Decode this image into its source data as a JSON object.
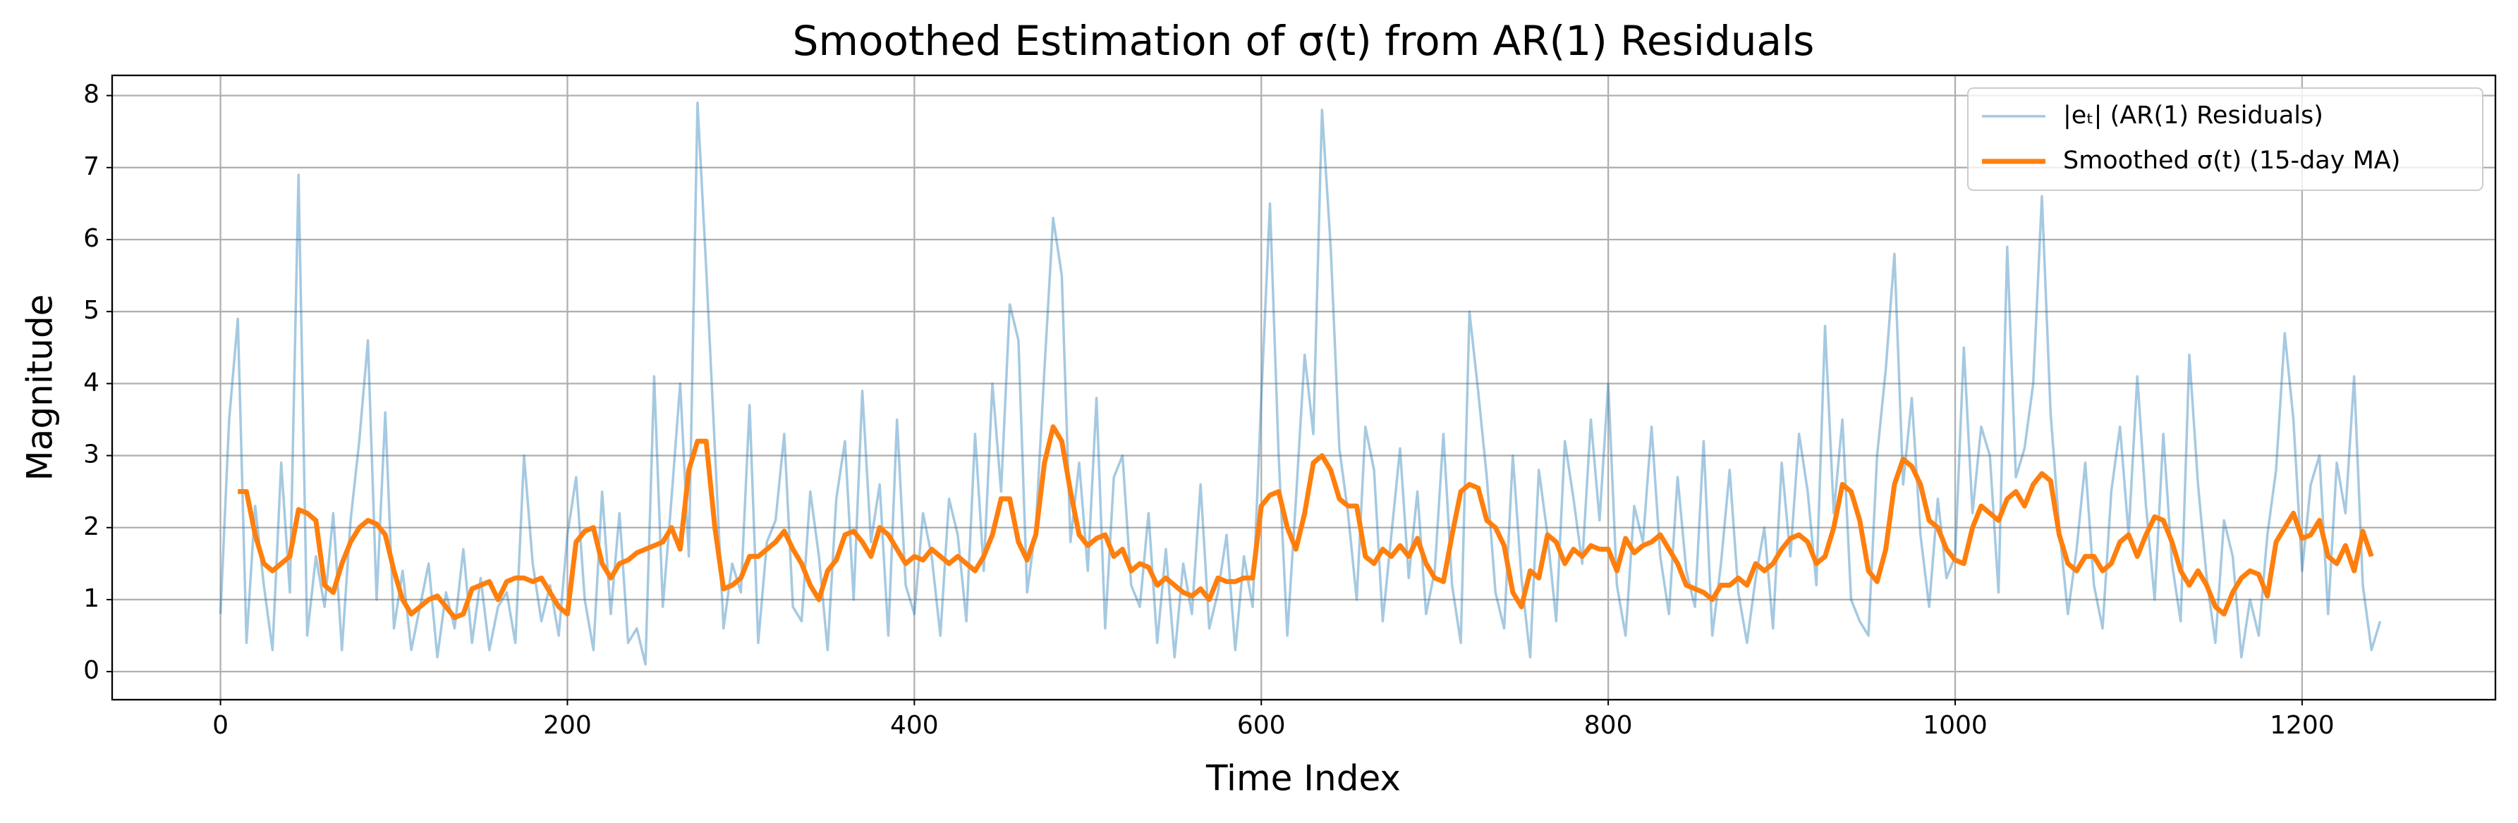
{
  "chart_data": {
    "type": "line",
    "title": "Smoothed Estimation of σ(t) from AR(1) Residuals",
    "x_label": "Time Index",
    "y_label": "Magnitude",
    "x": [
      0,
      5,
      10,
      15,
      20,
      25,
      30,
      35,
      40,
      45,
      50,
      55,
      60,
      65,
      70,
      75,
      80,
      85,
      90,
      95,
      100,
      105,
      110,
      115,
      120,
      125,
      130,
      135,
      140,
      145,
      150,
      155,
      160,
      165,
      170,
      175,
      180,
      185,
      190,
      195,
      200,
      205,
      210,
      215,
      220,
      225,
      230,
      235,
      240,
      245,
      250,
      255,
      260,
      265,
      270,
      275,
      280,
      285,
      290,
      295,
      300,
      305,
      310,
      315,
      320,
      325,
      330,
      335,
      340,
      345,
      350,
      355,
      360,
      365,
      370,
      375,
      380,
      385,
      390,
      395,
      400,
      405,
      410,
      415,
      420,
      425,
      430,
      435,
      440,
      445,
      450,
      455,
      460,
      465,
      470,
      475,
      480,
      485,
      490,
      495,
      500,
      505,
      510,
      515,
      520,
      525,
      530,
      535,
      540,
      545,
      550,
      555,
      560,
      565,
      570,
      575,
      580,
      585,
      590,
      595,
      600,
      605,
      610,
      615,
      620,
      625,
      630,
      635,
      640,
      645,
      650,
      655,
      660,
      665,
      670,
      675,
      680,
      685,
      690,
      695,
      700,
      705,
      710,
      715,
      720,
      725,
      730,
      735,
      740,
      745,
      750,
      755,
      760,
      765,
      770,
      775,
      780,
      785,
      790,
      795,
      800,
      805,
      810,
      815,
      820,
      825,
      830,
      835,
      840,
      845,
      850,
      855,
      860,
      865,
      870,
      875,
      880,
      885,
      890,
      895,
      900,
      905,
      910,
      915,
      920,
      925,
      930,
      935,
      940,
      945,
      950,
      955,
      960,
      965,
      970,
      975,
      980,
      985,
      990,
      995,
      1000,
      1005,
      1010,
      1015,
      1020,
      1025,
      1030,
      1035,
      1040,
      1045,
      1050,
      1055,
      1060,
      1065,
      1070,
      1075,
      1080,
      1085,
      1090,
      1095,
      1100,
      1105,
      1110,
      1115,
      1120,
      1125,
      1130,
      1135,
      1140,
      1145,
      1150,
      1155,
      1160,
      1165,
      1170,
      1175,
      1180,
      1185,
      1190,
      1195,
      1200,
      1205,
      1210,
      1215,
      1220,
      1225,
      1230,
      1235,
      1240,
      1245
    ],
    "series": [
      {
        "name": "|eₜ| (AR(1) Residuals)",
        "color": "#1f77b4",
        "alpha": 0.4,
        "values": [
          0.8,
          3.5,
          4.9,
          0.4,
          2.3,
          1.2,
          0.3,
          2.9,
          1.1,
          6.9,
          0.5,
          1.6,
          0.9,
          2.2,
          0.3,
          2.1,
          3.2,
          4.6,
          1.0,
          3.6,
          0.6,
          1.4,
          0.3,
          0.9,
          1.5,
          0.2,
          1.1,
          0.6,
          1.7,
          0.4,
          1.3,
          0.3,
          0.9,
          1.1,
          0.4,
          3.0,
          1.5,
          0.7,
          1.2,
          0.5,
          1.9,
          2.7,
          1.0,
          0.3,
          2.5,
          0.8,
          2.2,
          0.4,
          0.6,
          0.1,
          4.1,
          0.9,
          2.4,
          4.0,
          1.6,
          7.9,
          5.6,
          3.1,
          0.6,
          1.5,
          1.1,
          3.7,
          0.4,
          1.8,
          2.1,
          3.3,
          0.9,
          0.7,
          2.5,
          1.6,
          0.3,
          2.4,
          3.2,
          1.0,
          3.9,
          1.8,
          2.6,
          0.5,
          3.5,
          1.2,
          0.8,
          2.2,
          1.6,
          0.5,
          2.4,
          1.9,
          0.7,
          3.3,
          1.4,
          4.0,
          2.5,
          5.1,
          4.6,
          1.1,
          2.0,
          4.2,
          6.3,
          5.5,
          1.8,
          2.9,
          1.4,
          3.8,
          0.6,
          2.7,
          3.0,
          1.2,
          0.9,
          2.2,
          0.4,
          1.7,
          0.2,
          1.5,
          0.8,
          2.6,
          0.6,
          1.1,
          1.9,
          0.3,
          1.6,
          0.9,
          3.8,
          6.5,
          3.0,
          0.5,
          2.4,
          4.4,
          3.3,
          7.8,
          5.9,
          3.1,
          2.2,
          1.0,
          3.4,
          2.8,
          0.7,
          1.9,
          3.1,
          1.3,
          2.5,
          0.8,
          1.4,
          3.3,
          1.2,
          0.4,
          5.0,
          3.9,
          2.7,
          1.1,
          0.6,
          3.0,
          1.3,
          0.2,
          2.8,
          1.9,
          0.7,
          3.2,
          2.4,
          1.5,
          3.5,
          2.1,
          4.0,
          1.2,
          0.5,
          2.3,
          1.8,
          3.4,
          1.6,
          0.8,
          2.7,
          1.4,
          0.9,
          3.2,
          0.5,
          1.5,
          2.8,
          1.1,
          0.4,
          1.3,
          2.0,
          0.6,
          2.9,
          1.6,
          3.3,
          2.5,
          1.2,
          4.8,
          2.2,
          3.5,
          1.0,
          0.7,
          0.5,
          3.0,
          4.2,
          5.8,
          2.6,
          3.8,
          1.9,
          0.9,
          2.4,
          1.3,
          1.6,
          4.5,
          2.2,
          3.4,
          3.0,
          1.1,
          5.9,
          2.7,
          3.1,
          4.0,
          6.6,
          3.6,
          2.0,
          0.8,
          1.7,
          2.9,
          1.2,
          0.6,
          2.5,
          3.4,
          1.9,
          4.1,
          2.3,
          1.0,
          3.3,
          1.5,
          0.7,
          4.4,
          2.6,
          1.3,
          0.4,
          2.1,
          1.6,
          0.2,
          1.0,
          0.5,
          1.9,
          2.8,
          4.7,
          3.5,
          1.4,
          2.6,
          3.0,
          0.8,
          2.9,
          2.2,
          4.1,
          1.2,
          0.3,
          0.7
        ]
      },
      {
        "name": "Smoothed σ(t) (15-day MA)",
        "color": "#ff7f0e",
        "values": [
          null,
          null,
          2.5,
          2.5,
          1.9,
          1.5,
          1.4,
          1.5,
          1.6,
          2.25,
          2.2,
          2.1,
          1.2,
          1.1,
          1.5,
          1.8,
          2.0,
          2.1,
          2.05,
          1.9,
          1.4,
          1.0,
          0.8,
          0.9,
          1.0,
          1.05,
          0.9,
          0.75,
          0.8,
          1.15,
          1.2,
          1.25,
          1.0,
          1.25,
          1.3,
          1.3,
          1.25,
          1.3,
          1.1,
          0.9,
          0.8,
          1.8,
          1.95,
          2.0,
          1.5,
          1.3,
          1.5,
          1.55,
          1.65,
          1.7,
          1.75,
          1.8,
          2.0,
          1.7,
          2.8,
          3.2,
          3.2,
          2.0,
          1.15,
          1.2,
          1.3,
          1.6,
          1.6,
          1.7,
          1.8,
          1.95,
          1.7,
          1.5,
          1.2,
          1.0,
          1.4,
          1.55,
          1.9,
          1.95,
          1.8,
          1.6,
          2.0,
          1.9,
          1.7,
          1.5,
          1.6,
          1.55,
          1.7,
          1.6,
          1.5,
          1.6,
          1.5,
          1.4,
          1.6,
          1.9,
          2.4,
          2.4,
          1.8,
          1.55,
          1.9,
          2.9,
          3.4,
          3.2,
          2.5,
          1.9,
          1.75,
          1.85,
          1.9,
          1.6,
          1.7,
          1.4,
          1.5,
          1.45,
          1.2,
          1.3,
          1.2,
          1.1,
          1.05,
          1.15,
          1.0,
          1.3,
          1.25,
          1.25,
          1.3,
          1.3,
          2.3,
          2.45,
          2.5,
          2.0,
          1.7,
          2.2,
          2.9,
          3.0,
          2.8,
          2.4,
          2.3,
          2.3,
          1.6,
          1.5,
          1.7,
          1.6,
          1.75,
          1.6,
          1.85,
          1.5,
          1.3,
          1.25,
          1.9,
          2.5,
          2.6,
          2.55,
          2.1,
          2.0,
          1.75,
          1.1,
          0.9,
          1.4,
          1.3,
          1.9,
          1.8,
          1.5,
          1.7,
          1.6,
          1.75,
          1.7,
          1.7,
          1.4,
          1.85,
          1.65,
          1.75,
          1.8,
          1.9,
          1.7,
          1.5,
          1.2,
          1.15,
          1.1,
          1.0,
          1.2,
          1.2,
          1.3,
          1.2,
          1.5,
          1.4,
          1.5,
          1.7,
          1.85,
          1.9,
          1.8,
          1.5,
          1.6,
          2.0,
          2.6,
          2.5,
          2.1,
          1.4,
          1.25,
          1.7,
          2.6,
          2.95,
          2.85,
          2.6,
          2.1,
          2.0,
          1.7,
          1.55,
          1.5,
          2.0,
          2.3,
          2.2,
          2.1,
          2.4,
          2.5,
          2.3,
          2.6,
          2.75,
          2.65,
          1.9,
          1.5,
          1.4,
          1.6,
          1.6,
          1.4,
          1.5,
          1.8,
          1.9,
          1.6,
          1.9,
          2.15,
          2.1,
          1.8,
          1.4,
          1.2,
          1.4,
          1.2,
          0.9,
          0.8,
          1.1,
          1.3,
          1.4,
          1.35,
          1.05,
          1.8,
          2.0,
          2.2,
          1.85,
          1.9,
          2.1,
          1.6,
          1.5,
          1.75,
          1.4,
          1.95,
          1.6,
          null
        ]
      }
    ],
    "xlim": [
      -62.45,
      1311.45
    ],
    "ylim": [
      -0.39,
      8.28
    ],
    "xticks": [
      0,
      200,
      400,
      600,
      800,
      1000,
      1200
    ],
    "yticks": [
      0,
      1,
      2,
      3,
      4,
      5,
      6,
      7,
      8
    ],
    "grid": true,
    "legend": "upper right"
  }
}
